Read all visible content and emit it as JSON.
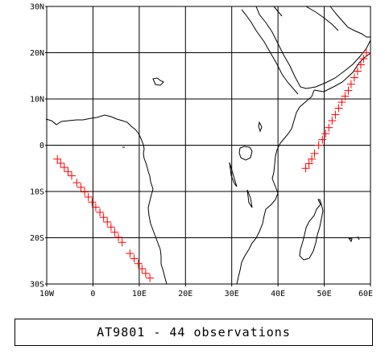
{
  "map": {
    "lat_range": [
      -30,
      30
    ],
    "lon_range": [
      -10,
      60
    ],
    "grid_step_deg": 10,
    "lat_labels": [
      "30N",
      "20N",
      "10N",
      "0",
      "10S",
      "20S",
      "30S"
    ],
    "lon_labels": [
      "10W",
      "0",
      "10E",
      "20E",
      "30E",
      "40E",
      "50E",
      "60E"
    ],
    "marker_color": "#ff0000",
    "marker_symbol": "+",
    "tracks": [
      {
        "observations": [
          [
            -7.7,
            -3.0
          ],
          [
            -7.0,
            -3.9
          ],
          [
            -6.2,
            -4.8
          ],
          [
            -5.4,
            -5.7
          ],
          [
            -4.6,
            -6.6
          ],
          [
            -3.5,
            -8.1
          ],
          [
            -2.6,
            -9.1
          ],
          [
            -1.8,
            -10.1
          ],
          [
            -1.0,
            -11.2
          ],
          [
            -0.2,
            -12.3
          ],
          [
            0.6,
            -13.4
          ],
          [
            1.5,
            -14.5
          ],
          [
            2.3,
            -15.6
          ],
          [
            3.1,
            -16.6
          ],
          [
            3.9,
            -17.7
          ],
          [
            4.7,
            -18.8
          ],
          [
            5.5,
            -19.9
          ],
          [
            6.3,
            -21.0
          ],
          [
            8.0,
            -23.4
          ],
          [
            8.9,
            -24.5
          ],
          [
            9.8,
            -25.6
          ],
          [
            10.6,
            -26.7
          ],
          [
            11.4,
            -27.7
          ],
          [
            12.3,
            -28.7
          ]
        ]
      },
      {
        "observations": [
          [
            46.0,
            -5.0
          ],
          [
            46.7,
            -4.0
          ],
          [
            47.3,
            -3.0
          ],
          [
            47.9,
            -1.8
          ],
          [
            48.8,
            0.0
          ],
          [
            49.6,
            1.2
          ],
          [
            50.3,
            2.5
          ],
          [
            51.0,
            3.8
          ],
          [
            51.7,
            5.3
          ],
          [
            52.4,
            6.6
          ],
          [
            53.1,
            8.0
          ],
          [
            53.8,
            9.3
          ],
          [
            54.5,
            10.6
          ],
          [
            55.2,
            11.8
          ],
          [
            55.8,
            13.2
          ],
          [
            56.5,
            14.6
          ],
          [
            57.2,
            16.0
          ],
          [
            57.9,
            17.4
          ],
          [
            58.5,
            18.7
          ],
          [
            59.1,
            20.0
          ]
        ]
      }
    ]
  },
  "caption": "AT9801 - 44 observations"
}
